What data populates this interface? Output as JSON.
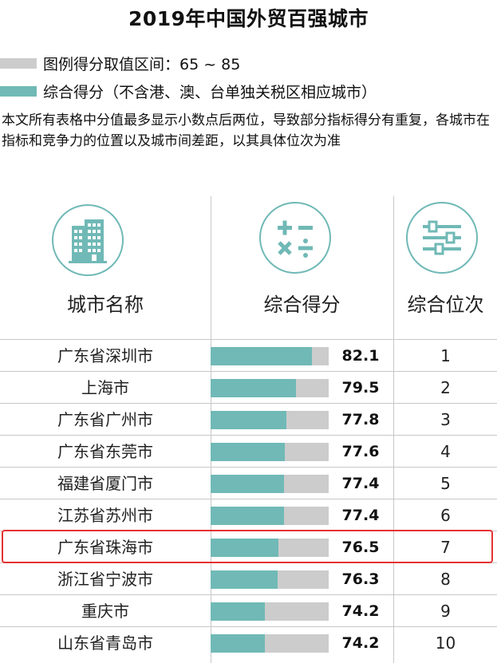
{
  "title": "2019年中国外贸百强城市",
  "legend": {
    "range_label": "图例得分取值区间：65 ~ 85",
    "score_label": "综合得分（不含港、澳、台单独关税区相应城市）",
    "range_color": "#cccccc",
    "score_color": "#70b9b6"
  },
  "note": "本文所有表格中分值最多显示小数点后两位，导致部分指标得分有重复，各城市在指标和竞争力的位置以及城市间差距，以其具体位次为准",
  "headers": {
    "city": "城市名称",
    "score": "综合得分",
    "rank": "综合位次"
  },
  "icons": {
    "city": "buildings-icon",
    "score": "math-operators-icon",
    "rank": "sliders-icon"
  },
  "highlight_color": "#e53232",
  "chart_data": {
    "type": "bar",
    "title": "2019年中国外贸百强城市",
    "ylim": [
      65,
      85
    ],
    "categories": [
      "广东省深圳市",
      "上海市",
      "广东省广州市",
      "广东省东莞市",
      "福建省厦门市",
      "江苏省苏州市",
      "广东省珠海市",
      "浙江省宁波市",
      "重庆市",
      "山东省青岛市"
    ],
    "series": [
      {
        "name": "综合得分（不含港、澳、台单独关税区相应城市）",
        "values": [
          82.1,
          79.5,
          77.8,
          77.6,
          77.4,
          77.4,
          76.5,
          76.3,
          74.2,
          74.2
        ]
      }
    ],
    "scores_text": [
      "82.1",
      "79.5",
      "77.8",
      "77.6",
      "77.4",
      "77.4",
      "76.5",
      "76.3",
      "74.2",
      "74.2"
    ],
    "ranks": [
      "1",
      "2",
      "3",
      "4",
      "5",
      "6",
      "7",
      "8",
      "9",
      "10"
    ],
    "highlighted_category": "广东省珠海市"
  }
}
